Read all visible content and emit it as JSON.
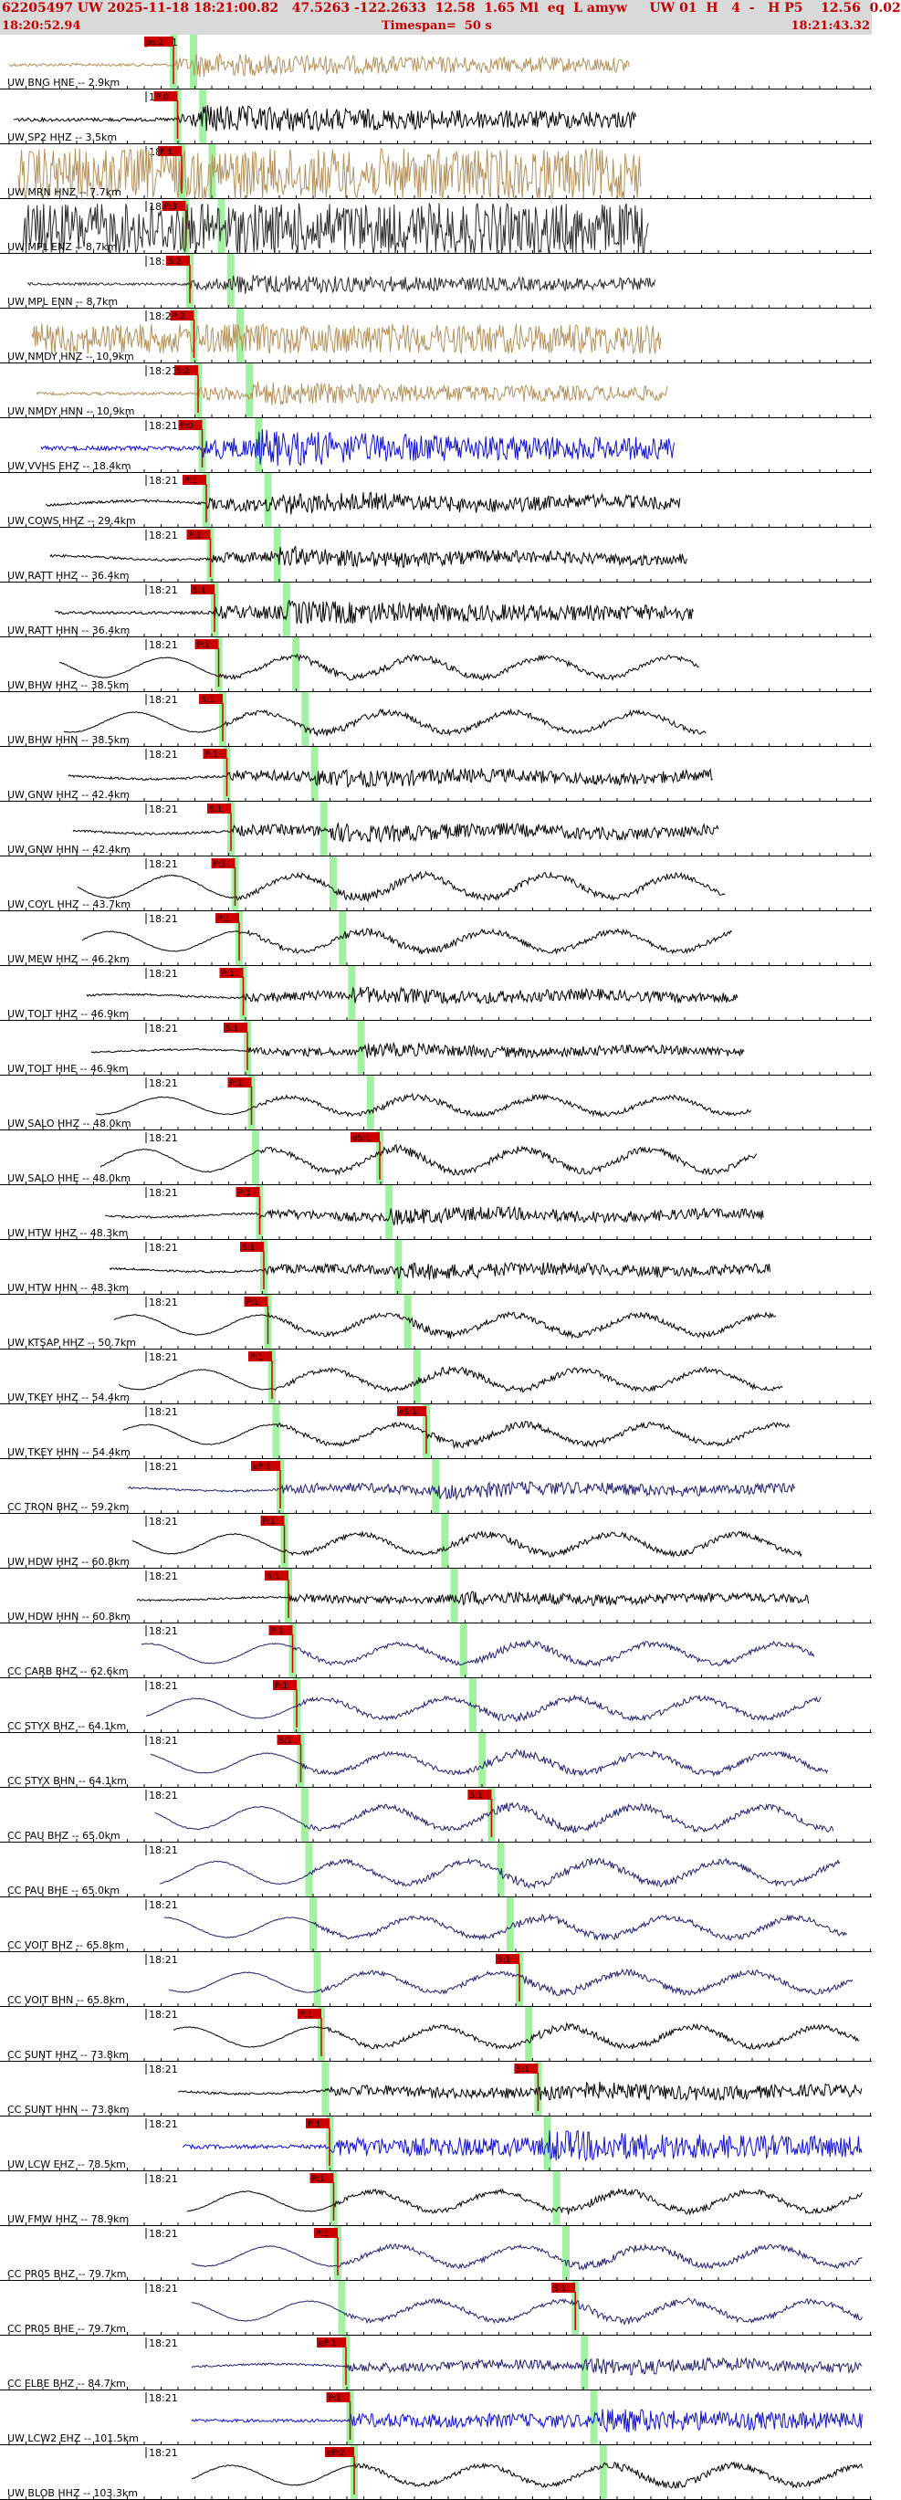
{
  "header": {
    "title": "62205497 UW 2025-11-18 18:21:00.82   47.5263 -122.2633  12.58  1.65 Ml  eq  L amyw     UW 01  H   4  -   H P5    12.56  0.02",
    "start_time": "18:20:52.94",
    "timespan": "Timespan=  50 s",
    "end_time": "18:21:43.32"
  },
  "colors": {
    "header_bg": "#d9d9d9",
    "header_text": "#c00000",
    "pick_box": "#cc0000",
    "green_band": "#90ee90",
    "trace_tan": "#b5915a",
    "trace_black": "#000000",
    "trace_dark": "#2b2b2b",
    "trace_blue": "#1010d0",
    "trace_navy": "#202070"
  },
  "minute_tick_label": "18:21",
  "traces": [
    {
      "label": "UW BNG HNE -- 2.9km",
      "color": "tan",
      "p": 0.0,
      "s": 0.0,
      "amp": 0.3,
      "freq": "high",
      "p_label": "ps:2",
      "s_label": ""
    },
    {
      "label": "UW SP2 HHZ -- 3.5km",
      "color": "black",
      "p": 0.0,
      "s": 0.0,
      "amp": 0.35,
      "freq": "high",
      "p_label": "P:0",
      "s_label": ""
    },
    {
      "label": "UW MRN HNZ -- 7.7km",
      "color": "tan",
      "p": 0.0,
      "s": 0.0,
      "amp": 0.95,
      "freq": "noise",
      "p_label": "P:1",
      "s_label": ""
    },
    {
      "label": "UW MPL ENZ -- 8.7km",
      "color": "dark",
      "p": 0.0,
      "s": 0.0,
      "amp": 0.95,
      "freq": "noise",
      "p_label": "P:3",
      "s_label": ""
    },
    {
      "label": "UW MPL ENN -- 8.7km",
      "color": "dark",
      "p": 0.0,
      "s": 0.0,
      "amp": 0.25,
      "freq": "high",
      "p_label": "S:2",
      "s_label": ""
    },
    {
      "label": "UW NMDY HNZ -- 10.9km",
      "color": "tan",
      "p": 0.0,
      "s": 0.0,
      "amp": 0.55,
      "freq": "noise",
      "p_label": "P:2",
      "s_label": ""
    },
    {
      "label": "UW NMDY HNN -- 10.9km",
      "color": "tan",
      "p": 0.0,
      "s": 0.0,
      "amp": 0.3,
      "freq": "high",
      "p_label": "S:2",
      "s_label": ""
    },
    {
      "label": "UW VVHS EHZ -- 18.4km",
      "color": "blue",
      "p": 0.0,
      "s": 0.0,
      "amp": 0.45,
      "freq": "high",
      "p_label": "P:0",
      "s_label": ""
    },
    {
      "label": "UW COWS HHZ -- 29.4km",
      "color": "black",
      "p": 0.0,
      "s": 0.0,
      "amp": 0.45,
      "freq": "mixed",
      "p_label": "P:1",
      "s_label": ""
    },
    {
      "label": "UW RATT HHZ -- 36.4km",
      "color": "black",
      "p": 0.0,
      "s": 0.0,
      "amp": 0.4,
      "freq": "mixed",
      "p_label": "P:1",
      "s_label": ""
    },
    {
      "label": "UW RATT HHN -- 36.4km",
      "color": "black",
      "p": 0.0,
      "s": 0.0,
      "amp": 0.3,
      "freq": "high",
      "p_label": "S:1",
      "s_label": ""
    },
    {
      "label": "UW BHW HHZ -- 38.5km",
      "color": "black",
      "p": 0.0,
      "s": 0.0,
      "amp": 0.4,
      "freq": "low",
      "p_label": "P:1",
      "s_label": ""
    },
    {
      "label": "UW BHW HHN -- 38.5km",
      "color": "black",
      "p": 0.0,
      "s": 0.0,
      "amp": 0.4,
      "freq": "low",
      "p_label": "S:1",
      "s_label": ""
    },
    {
      "label": "UW GNW HHZ -- 42.4km",
      "color": "black",
      "p": 0.0,
      "s": 0.0,
      "amp": 0.4,
      "freq": "mixed",
      "p_label": "P:1",
      "s_label": ""
    },
    {
      "label": "UW GNW HHN -- 42.4km",
      "color": "black",
      "p": 0.0,
      "s": 0.0,
      "amp": 0.4,
      "freq": "mixed",
      "p_label": "S:1",
      "s_label": ""
    },
    {
      "label": "UW COYL HHZ -- 43.7km",
      "color": "black",
      "p": 0.0,
      "s": 0.0,
      "amp": 0.45,
      "freq": "low",
      "p_label": "P:1",
      "s_label": ""
    },
    {
      "label": "UW MEW HHZ -- 46.2km",
      "color": "black",
      "p": 0.0,
      "s": 0.0,
      "amp": 0.4,
      "freq": "low",
      "p_label": "P:1",
      "s_label": ""
    },
    {
      "label": "UW TOLT HHZ -- 46.9km",
      "color": "black",
      "p": 0.0,
      "s": 0.0,
      "amp": 0.35,
      "freq": "mixed",
      "p_label": "P:1",
      "s_label": ""
    },
    {
      "label": "UW TOLT HHE -- 46.9km",
      "color": "black",
      "p": 0.0,
      "s": 0.0,
      "amp": 0.3,
      "freq": "mixed",
      "p_label": "S:1",
      "s_label": ""
    },
    {
      "label": "UW SALO HHZ -- 48.0km",
      "color": "black",
      "p": 0.0,
      "s": 0.0,
      "amp": 0.35,
      "freq": "low",
      "p_label": "P:1",
      "s_label": ""
    },
    {
      "label": "UW SALO HHE -- 48.0km",
      "color": "black",
      "p": 0.0,
      "s": 0.0,
      "amp": 0.45,
      "freq": "low",
      "p_label": "",
      "s_label": "eS:1"
    },
    {
      "label": "UW HTW HHZ -- 48.3km",
      "color": "black",
      "p": 0.0,
      "s": 0.0,
      "amp": 0.35,
      "freq": "mixed",
      "p_label": "P:1",
      "s_label": ""
    },
    {
      "label": "UW HTW HHN -- 48.3km",
      "color": "black",
      "p": 0.0,
      "s": 0.0,
      "amp": 0.35,
      "freq": "mixed",
      "p_label": "S:1",
      "s_label": ""
    },
    {
      "label": "UW KTSAP HHZ -- 50.7km",
      "color": "black",
      "p": 0.0,
      "s": 0.0,
      "amp": 0.4,
      "freq": "low",
      "p_label": "P:1",
      "s_label": ""
    },
    {
      "label": "UW TKEY HHZ -- 54.4km",
      "color": "black",
      "p": 0.0,
      "s": 0.0,
      "amp": 0.4,
      "freq": "low",
      "p_label": "P:1",
      "s_label": ""
    },
    {
      "label": "UW TKEY HHN -- 54.4km",
      "color": "black",
      "p": 0.0,
      "s": 0.0,
      "amp": 0.4,
      "freq": "low",
      "p_label": "",
      "s_label": "eS:1"
    },
    {
      "label": "CC TRON BHZ -- 59.2km",
      "color": "navy",
      "p": 0.0,
      "s": 0.0,
      "amp": 0.35,
      "freq": "mixed",
      "p_label": "eP:1",
      "s_label": ""
    },
    {
      "label": "UW HDW HHZ -- 60.8km",
      "color": "black",
      "p": 0.0,
      "s": 0.0,
      "amp": 0.4,
      "freq": "low",
      "p_label": "P:1",
      "s_label": ""
    },
    {
      "label": "UW HDW HHN -- 60.8km",
      "color": "black",
      "p": 0.0,
      "s": 0.0,
      "amp": 0.3,
      "freq": "mixed",
      "p_label": "S:1",
      "s_label": ""
    },
    {
      "label": "CC CARB BHZ -- 62.6km",
      "color": "navy",
      "p": 0.0,
      "s": 0.0,
      "amp": 0.4,
      "freq": "low",
      "p_label": "P:1",
      "s_label": ""
    },
    {
      "label": "CC STYX BHZ -- 64.1km",
      "color": "navy",
      "p": 0.0,
      "s": 0.0,
      "amp": 0.4,
      "freq": "low",
      "p_label": "P:1",
      "s_label": ""
    },
    {
      "label": "CC STYX BHN -- 64.1km",
      "color": "navy",
      "p": 0.0,
      "s": 0.0,
      "amp": 0.4,
      "freq": "low",
      "p_label": "S:1",
      "s_label": ""
    },
    {
      "label": "CC PAU BHZ -- 65.0km",
      "color": "navy",
      "p": 0.0,
      "s": 0.0,
      "amp": 0.45,
      "freq": "low",
      "p_label": "",
      "s_label": "S:1"
    },
    {
      "label": "CC PAU BHE -- 65.0km",
      "color": "navy",
      "p": 0.0,
      "s": 0.0,
      "amp": 0.45,
      "freq": "low",
      "p_label": "",
      "s_label": ""
    },
    {
      "label": "CC VOIT BHZ -- 65.8km",
      "color": "navy",
      "p": 0.0,
      "s": 0.0,
      "amp": 0.4,
      "freq": "low",
      "p_label": "",
      "s_label": ""
    },
    {
      "label": "CC VOIT BHN -- 65.8km",
      "color": "navy",
      "p": 0.0,
      "s": 0.0,
      "amp": 0.4,
      "freq": "low",
      "p_label": "",
      "s_label": "S:1"
    },
    {
      "label": "CC SUNT HHZ -- 73.8km",
      "color": "black",
      "p": 0.0,
      "s": 0.0,
      "amp": 0.4,
      "freq": "low",
      "p_label": "P:1",
      "s_label": ""
    },
    {
      "label": "CC SUNT HHN -- 73.8km",
      "color": "black",
      "p": 0.0,
      "s": 0.0,
      "amp": 0.4,
      "freq": "mixed",
      "p_label": "",
      "s_label": "S:1"
    },
    {
      "label": "UW LCW EHZ -- 78.5km",
      "color": "blue",
      "p": 0.0,
      "s": 0.0,
      "amp": 0.4,
      "freq": "high",
      "p_label": "P:1",
      "s_label": ""
    },
    {
      "label": "UW FMW HHZ -- 78.9km",
      "color": "black",
      "p": 0.0,
      "s": 0.0,
      "amp": 0.4,
      "freq": "low",
      "p_label": "P:1",
      "s_label": ""
    },
    {
      "label": "CC PR05 BHZ -- 79.7km",
      "color": "navy",
      "p": 0.0,
      "s": 0.0,
      "amp": 0.4,
      "freq": "low",
      "p_label": "P:1",
      "s_label": ""
    },
    {
      "label": "CC PR05 BHE -- 79.7km",
      "color": "navy",
      "p": 0.0,
      "s": 0.0,
      "amp": 0.4,
      "freq": "low",
      "p_label": "",
      "s_label": "S:1"
    },
    {
      "label": "CC ELBE BHZ -- 84.7km",
      "color": "navy",
      "p": 0.0,
      "s": 0.0,
      "amp": 0.35,
      "freq": "mixed",
      "p_label": "eP:1",
      "s_label": ""
    },
    {
      "label": "UW LCW2 EHZ -- 101.5km",
      "color": "blue",
      "p": 0.0,
      "s": 0.0,
      "amp": 0.3,
      "freq": "high",
      "p_label": "P:1",
      "s_label": ""
    },
    {
      "label": "UW BLOB HHZ -- 103.3km",
      "color": "black",
      "p": 0.0,
      "s": 0.0,
      "amp": 0.4,
      "freq": "low",
      "p_label": "eP:2",
      "s_label": ""
    }
  ]
}
